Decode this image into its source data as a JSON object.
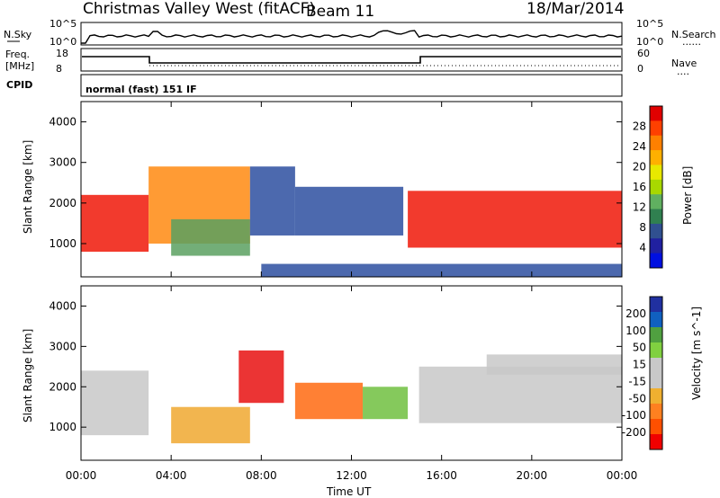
{
  "header": {
    "title": "Christmas Valley West (fitACF)",
    "beam": "Beam 11",
    "date": "18/Mar/2014"
  },
  "strip1": {
    "left_label": "N.Sky",
    "left_ticks": [
      "10^5",
      "10^0"
    ],
    "right_ticks": [
      "10^5",
      "10^0"
    ],
    "right_label": "N.Search",
    "right_legend": "......"
  },
  "strip2": {
    "left_label_1": "Freq.",
    "left_label_2": "[MHz]",
    "left_ticks": [
      "18",
      "8"
    ],
    "right_ticks": [
      "60",
      "0"
    ],
    "right_label": "Nave",
    "right_legend": "...."
  },
  "cpid": {
    "label": "CPID",
    "value": "normal (fast) 151 IF"
  },
  "chart_data": [
    {
      "type": "heatmap",
      "quantity": "Power",
      "ylabel": "Slant Range [km]",
      "yticks": [
        "1000",
        "2000",
        "3000",
        "4000"
      ],
      "ylim": [
        180,
        4500
      ],
      "xlim_hours": [
        0,
        24
      ],
      "colorbar_label": "Power [dB]",
      "colorbar_ticks": [
        "28",
        "24",
        "20",
        "16",
        "12",
        "8",
        "4"
      ],
      "colorbar_colors": [
        "#e00000",
        "#ff4000",
        "#ff8000",
        "#ffb000",
        "#e8e800",
        "#a8d800",
        "#60b060",
        "#308050",
        "#305090",
        "#2020a0",
        "#0010e0"
      ],
      "features": [
        {
          "hours": [
            0,
            3
          ],
          "range_km": [
            800,
            2200
          ],
          "level_db": 28
        },
        {
          "hours": [
            3,
            7.5
          ],
          "range_km": [
            1000,
            2900
          ],
          "level_db": 20
        },
        {
          "hours": [
            4,
            7.5
          ],
          "range_km": [
            700,
            1600
          ],
          "level_db": 12
        },
        {
          "hours": [
            7.5,
            9.5
          ],
          "range_km": [
            1200,
            2900
          ],
          "level_db": 10
        },
        {
          "hours": [
            9.5,
            14.3
          ],
          "range_km": [
            1200,
            2400
          ],
          "level_db": 10
        },
        {
          "hours": [
            14.5,
            24
          ],
          "range_km": [
            900,
            2300
          ],
          "level_db": 28
        },
        {
          "hours": [
            8,
            24
          ],
          "range_km": [
            180,
            500
          ],
          "level_db": 8
        }
      ]
    },
    {
      "type": "heatmap",
      "quantity": "Velocity",
      "ylabel": "Slant Range [km]",
      "yticks": [
        "1000",
        "2000",
        "3000",
        "4000"
      ],
      "ylim": [
        180,
        4500
      ],
      "xlim_hours": [
        0,
        24
      ],
      "xticks": [
        "00:00",
        "04:00",
        "08:00",
        "12:00",
        "16:00",
        "20:00",
        "00:00"
      ],
      "xlabel": "Time UT",
      "colorbar_label": "Velocity [m s^-1]",
      "colorbar_ticks": [
        "200",
        "100",
        "50",
        "15",
        "-15",
        "-50",
        "-100",
        "-200"
      ],
      "colorbar_colors": [
        "#2030a0",
        "#1060c0",
        "#50a040",
        "#80d040",
        "#c8c8c8",
        "#c8c8c8",
        "#f0b030",
        "#ff8020",
        "#ff5000",
        "#f00000"
      ],
      "features": [
        {
          "hours": [
            0,
            3
          ],
          "range_km": [
            800,
            2400
          ],
          "velocity_ms": 0
        },
        {
          "hours": [
            4,
            7.5
          ],
          "range_km": [
            600,
            1500
          ],
          "velocity_ms": -75
        },
        {
          "hours": [
            7,
            9
          ],
          "range_km": [
            1600,
            2900
          ],
          "velocity_ms": -200
        },
        {
          "hours": [
            9.5,
            12.5
          ],
          "range_km": [
            1200,
            2100
          ],
          "velocity_ms": -100
        },
        {
          "hours": [
            12.5,
            14.5
          ],
          "range_km": [
            1200,
            2000
          ],
          "velocity_ms": 75
        },
        {
          "hours": [
            15,
            24
          ],
          "range_km": [
            1100,
            2500
          ],
          "velocity_ms": 0
        },
        {
          "hours": [
            18,
            24
          ],
          "range_km": [
            2300,
            2800
          ],
          "velocity_ms": 0
        }
      ]
    }
  ]
}
